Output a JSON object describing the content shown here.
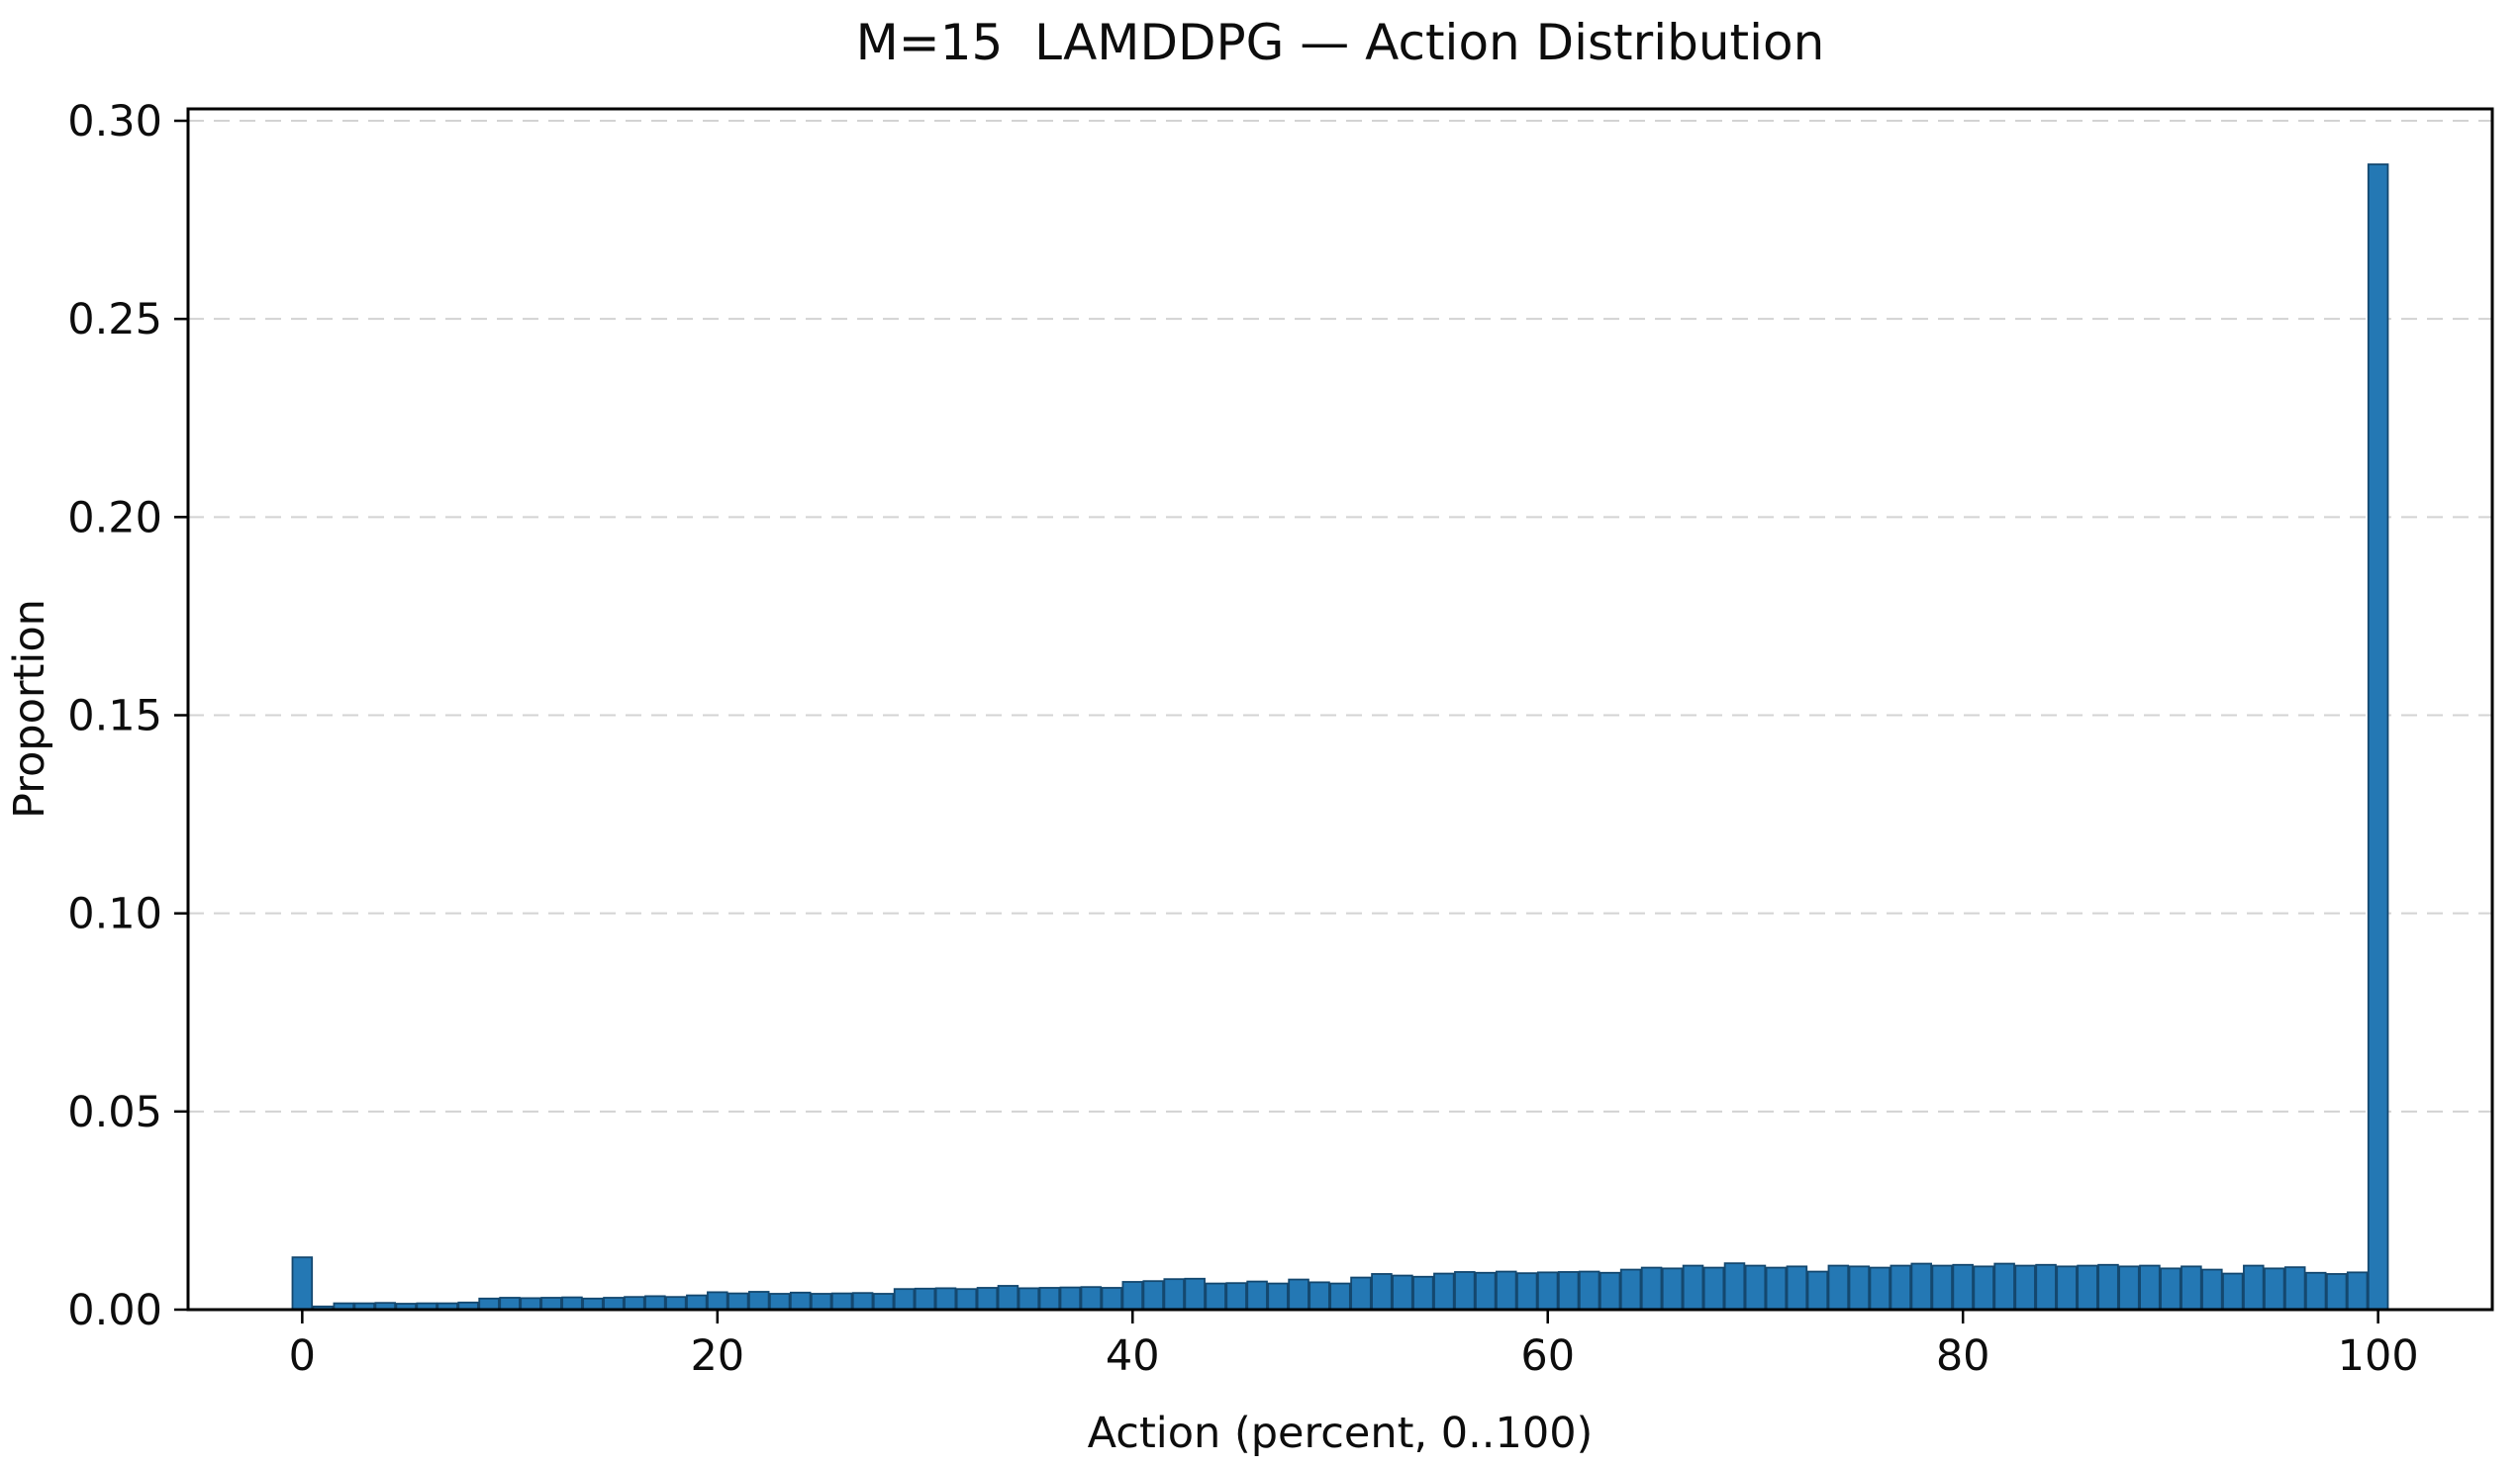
{
  "figure": {
    "background": "#ffffff"
  },
  "chart_data": {
    "type": "bar",
    "title": "M=15  LAMDDPG — Action Distribution",
    "xlabel": "Action (percent, 0..100)",
    "ylabel": "Proportion",
    "x_min": 0,
    "x_step": 1,
    "values": [
      0.0132,
      0.0008,
      0.0016,
      0.0016,
      0.0017,
      0.0015,
      0.0016,
      0.0016,
      0.0018,
      0.0028,
      0.003,
      0.0029,
      0.003,
      0.0031,
      0.0028,
      0.003,
      0.0032,
      0.0034,
      0.0032,
      0.0036,
      0.0044,
      0.0041,
      0.0045,
      0.004,
      0.0043,
      0.004,
      0.0041,
      0.0042,
      0.004,
      0.0052,
      0.0053,
      0.0054,
      0.0052,
      0.0055,
      0.006,
      0.0054,
      0.0055,
      0.0056,
      0.0057,
      0.0055,
      0.007,
      0.0072,
      0.0077,
      0.0078,
      0.0066,
      0.0067,
      0.0071,
      0.0066,
      0.0076,
      0.0069,
      0.0066,
      0.0081,
      0.009,
      0.0086,
      0.0083,
      0.0091,
      0.0095,
      0.0093,
      0.0096,
      0.0092,
      0.0094,
      0.0095,
      0.0096,
      0.0093,
      0.0101,
      0.0106,
      0.0104,
      0.0111,
      0.0106,
      0.0117,
      0.0111,
      0.0106,
      0.0109,
      0.0096,
      0.0111,
      0.0109,
      0.0106,
      0.0111,
      0.0116,
      0.0111,
      0.0113,
      0.0109,
      0.0116,
      0.0111,
      0.0113,
      0.0109,
      0.0111,
      0.0113,
      0.0109,
      0.0111,
      0.0104,
      0.0109,
      0.0101,
      0.0091,
      0.0111,
      0.0104,
      0.0107,
      0.0093,
      0.009,
      0.0094,
      0.289
    ],
    "xlim": [
      -5.5,
      105.5
    ],
    "ylim": [
      0,
      0.303
    ],
    "xticks": [
      0,
      20,
      40,
      60,
      80,
      100
    ],
    "xtick_labels": [
      "0",
      "20",
      "40",
      "60",
      "80",
      "100"
    ],
    "yticks": [
      0,
      0.05,
      0.1,
      0.15,
      0.2,
      0.25,
      0.3
    ],
    "ytick_labels": [
      "0.00",
      "0.05",
      "0.10",
      "0.15",
      "0.20",
      "0.25",
      "0.30"
    ],
    "grid": {
      "axis": "y",
      "style": "dashed",
      "color": "#d3d3d3"
    },
    "legend": null,
    "bar_color": "#2478b4",
    "bar_edge_color": "#14486f",
    "bar_width": 0.94
  }
}
